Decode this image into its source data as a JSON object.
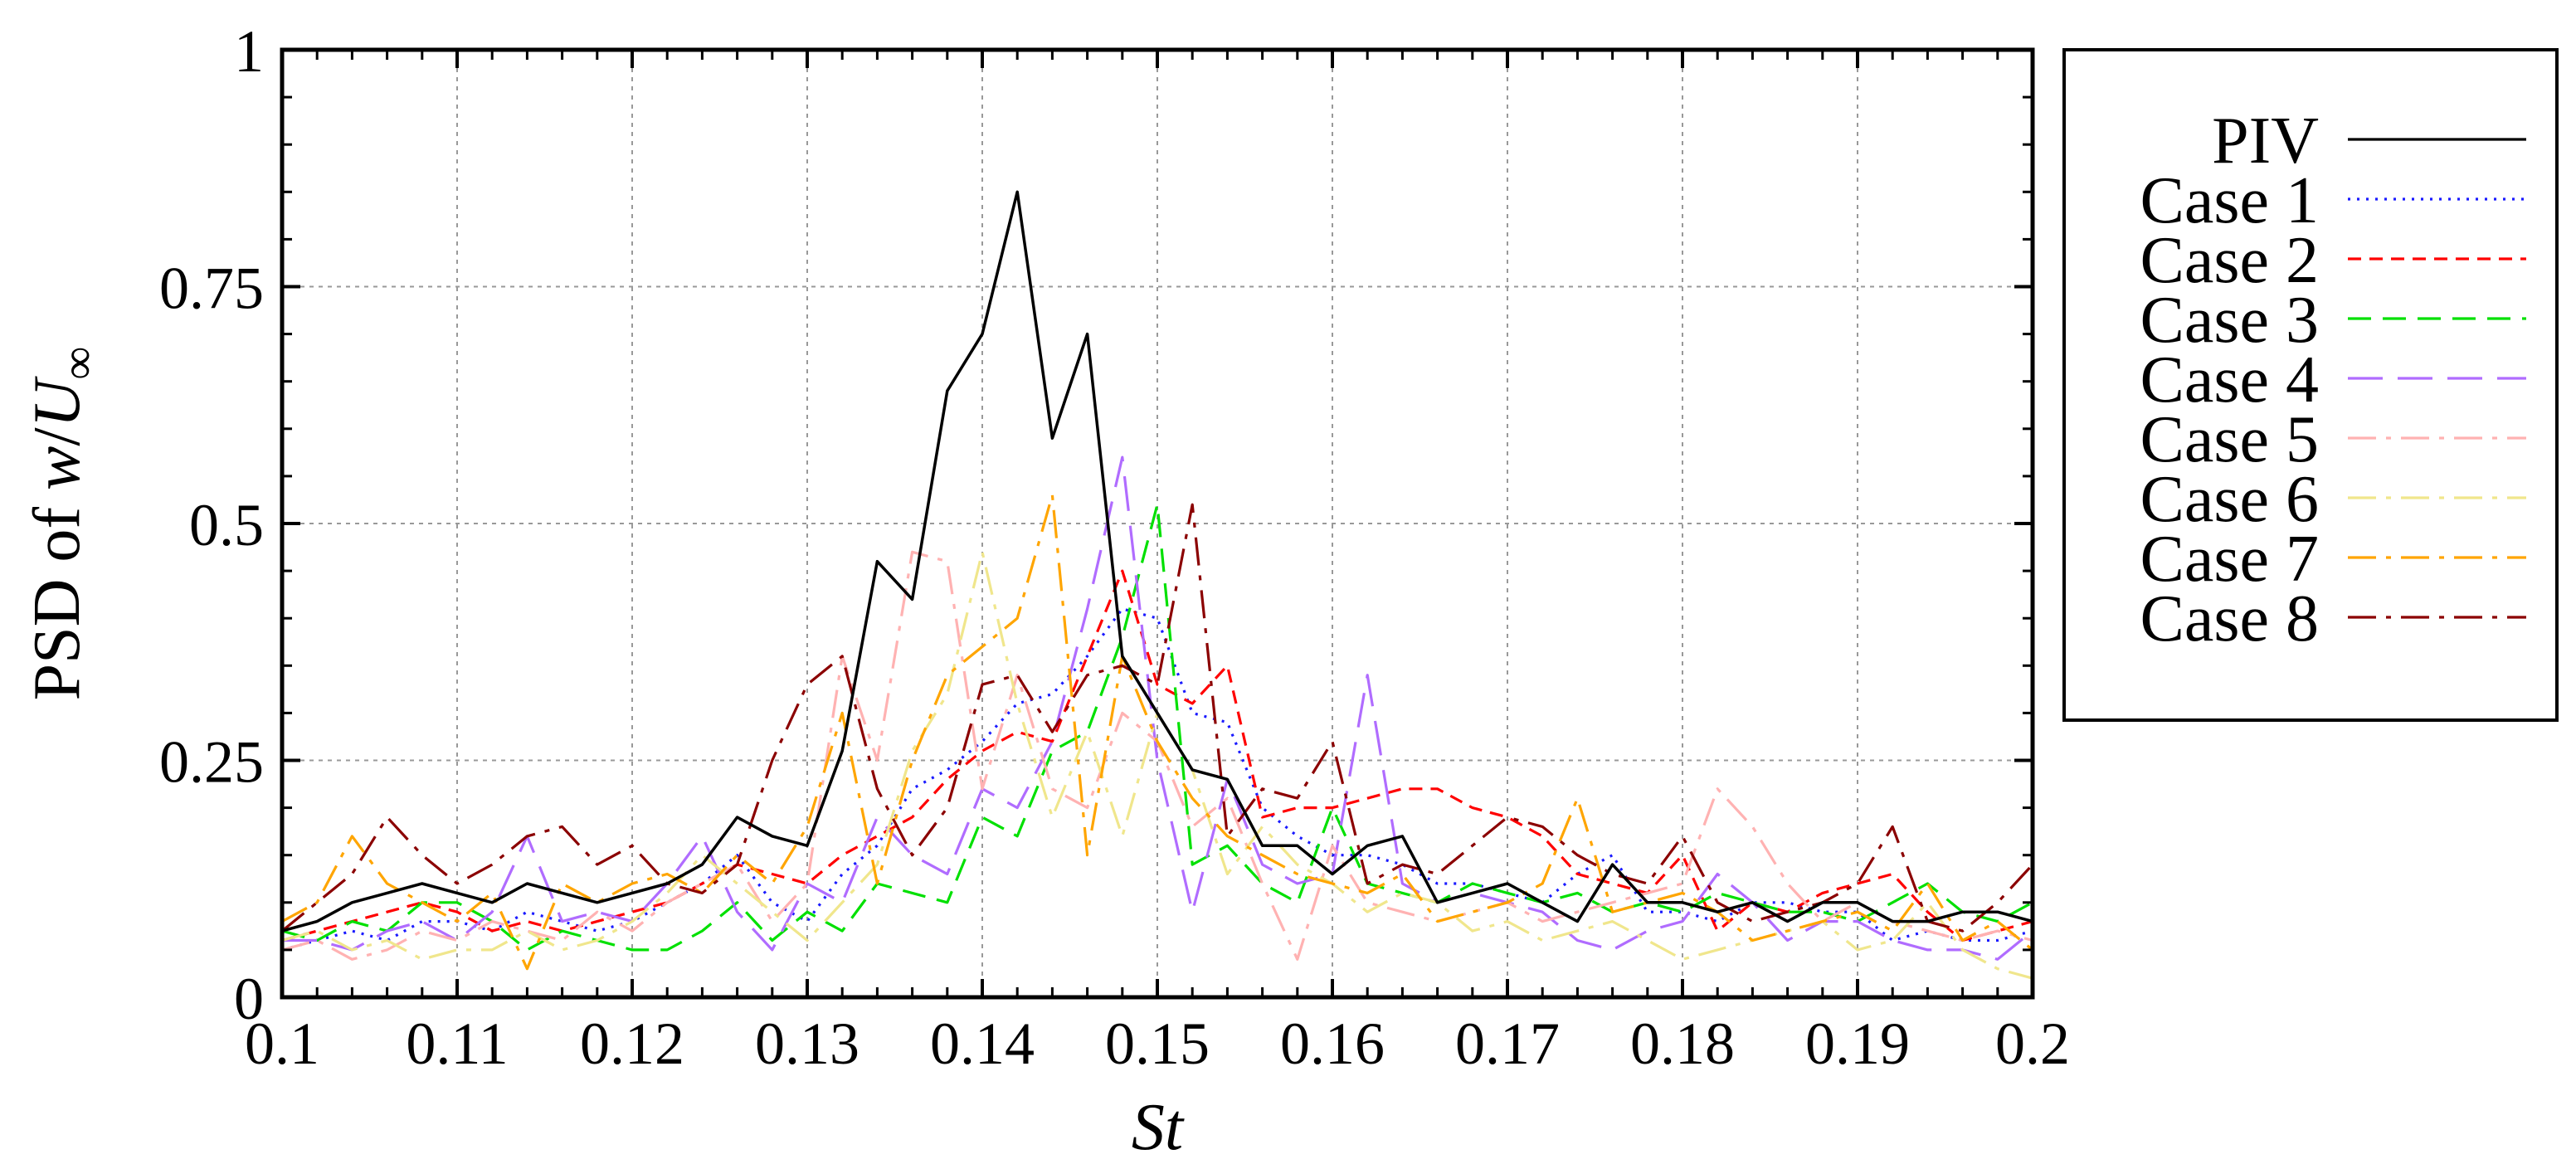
{
  "chart_data": {
    "type": "line",
    "title": "",
    "xlabel": "St",
    "ylabel": "PSD of w/U∞",
    "ylabel_parts": {
      "prefix": "PSD of ",
      "var": "w",
      "slash": "/",
      "var2": "U",
      "sub": "∞"
    },
    "xlim": [
      0.1,
      0.2
    ],
    "ylim": [
      0,
      1
    ],
    "grid": true,
    "legend_position": "outside-right",
    "xticks": [
      0.1,
      0.11,
      0.12,
      0.13,
      0.14,
      0.15,
      0.16,
      0.17,
      0.18,
      0.19,
      0.2
    ],
    "xtick_labels": [
      "0.1",
      "0.11",
      "0.12",
      "0.13",
      "0.14",
      "0.15",
      "0.16",
      "0.17",
      "0.18",
      "0.19",
      "0.2"
    ],
    "yticks": [
      0,
      0.25,
      0.5,
      0.75,
      1
    ],
    "ytick_labels": [
      "0",
      "0.25",
      "0.5",
      "0.75",
      "1"
    ],
    "series": [
      {
        "name": "PIV",
        "color": "#000000",
        "dash": "solid",
        "x": [
          0.1,
          0.102,
          0.104,
          0.106,
          0.108,
          0.11,
          0.112,
          0.114,
          0.116,
          0.118,
          0.12,
          0.122,
          0.124,
          0.126,
          0.128,
          0.13,
          0.132,
          0.134,
          0.136,
          0.138,
          0.14,
          0.142,
          0.144,
          0.146,
          0.148,
          0.15,
          0.152,
          0.154,
          0.156,
          0.158,
          0.16,
          0.162,
          0.164,
          0.166,
          0.168,
          0.17,
          0.172,
          0.174,
          0.176,
          0.178,
          0.18,
          0.182,
          0.184,
          0.186,
          0.188,
          0.19,
          0.192,
          0.194,
          0.196,
          0.198,
          0.2
        ],
        "y": [
          0.07,
          0.08,
          0.1,
          0.11,
          0.12,
          0.11,
          0.1,
          0.12,
          0.11,
          0.1,
          0.11,
          0.12,
          0.14,
          0.19,
          0.17,
          0.16,
          0.26,
          0.46,
          0.42,
          0.64,
          0.7,
          0.85,
          0.59,
          0.7,
          0.36,
          0.3,
          0.24,
          0.23,
          0.16,
          0.16,
          0.13,
          0.16,
          0.17,
          0.1,
          0.11,
          0.12,
          0.1,
          0.08,
          0.14,
          0.1,
          0.1,
          0.09,
          0.1,
          0.08,
          0.1,
          0.1,
          0.08,
          0.08,
          0.09,
          0.09,
          0.08
        ]
      },
      {
        "name": "Case 1",
        "color": "#1a1aff",
        "dash": "dotted",
        "x": [
          0.1,
          0.102,
          0.104,
          0.106,
          0.108,
          0.11,
          0.112,
          0.114,
          0.116,
          0.118,
          0.12,
          0.122,
          0.124,
          0.126,
          0.128,
          0.13,
          0.132,
          0.134,
          0.136,
          0.138,
          0.14,
          0.142,
          0.144,
          0.146,
          0.148,
          0.15,
          0.152,
          0.154,
          0.156,
          0.158,
          0.16,
          0.162,
          0.164,
          0.166,
          0.168,
          0.17,
          0.172,
          0.174,
          0.176,
          0.178,
          0.18,
          0.182,
          0.184,
          0.186,
          0.188,
          0.19,
          0.192,
          0.194,
          0.196,
          0.198,
          0.2
        ],
        "y": [
          0.05,
          0.06,
          0.07,
          0.06,
          0.08,
          0.08,
          0.07,
          0.09,
          0.08,
          0.07,
          0.08,
          0.1,
          0.12,
          0.15,
          0.1,
          0.08,
          0.13,
          0.16,
          0.22,
          0.24,
          0.27,
          0.31,
          0.32,
          0.36,
          0.41,
          0.4,
          0.3,
          0.29,
          0.2,
          0.17,
          0.15,
          0.15,
          0.14,
          0.12,
          0.12,
          0.11,
          0.1,
          0.13,
          0.15,
          0.09,
          0.09,
          0.08,
          0.1,
          0.1,
          0.09,
          0.09,
          0.06,
          0.07,
          0.06,
          0.06,
          0.07
        ]
      },
      {
        "name": "Case 2",
        "color": "#ff0000",
        "dash": "dashed",
        "x": [
          0.1,
          0.102,
          0.104,
          0.106,
          0.108,
          0.11,
          0.112,
          0.114,
          0.116,
          0.118,
          0.12,
          0.122,
          0.124,
          0.126,
          0.128,
          0.13,
          0.132,
          0.134,
          0.136,
          0.138,
          0.14,
          0.142,
          0.144,
          0.146,
          0.148,
          0.15,
          0.152,
          0.154,
          0.156,
          0.158,
          0.16,
          0.162,
          0.164,
          0.166,
          0.168,
          0.17,
          0.172,
          0.174,
          0.176,
          0.178,
          0.18,
          0.182,
          0.184,
          0.186,
          0.188,
          0.19,
          0.192,
          0.194,
          0.196,
          0.198,
          0.2
        ],
        "y": [
          0.06,
          0.07,
          0.08,
          0.09,
          0.1,
          0.09,
          0.07,
          0.08,
          0.07,
          0.08,
          0.09,
          0.1,
          0.12,
          0.14,
          0.13,
          0.12,
          0.15,
          0.17,
          0.19,
          0.23,
          0.26,
          0.28,
          0.27,
          0.36,
          0.45,
          0.33,
          0.31,
          0.35,
          0.19,
          0.2,
          0.2,
          0.21,
          0.22,
          0.22,
          0.2,
          0.19,
          0.17,
          0.13,
          0.12,
          0.11,
          0.15,
          0.07,
          0.1,
          0.09,
          0.11,
          0.12,
          0.13,
          0.09,
          0.06,
          0.07,
          0.08
        ]
      },
      {
        "name": "Case 3",
        "color": "#00e000",
        "dash": "longdash",
        "x": [
          0.1,
          0.102,
          0.104,
          0.106,
          0.108,
          0.11,
          0.112,
          0.114,
          0.116,
          0.118,
          0.12,
          0.122,
          0.124,
          0.126,
          0.128,
          0.13,
          0.132,
          0.134,
          0.136,
          0.138,
          0.14,
          0.142,
          0.144,
          0.146,
          0.148,
          0.15,
          0.152,
          0.154,
          0.156,
          0.158,
          0.16,
          0.162,
          0.164,
          0.166,
          0.168,
          0.17,
          0.172,
          0.174,
          0.176,
          0.178,
          0.18,
          0.182,
          0.184,
          0.186,
          0.188,
          0.19,
          0.192,
          0.194,
          0.196,
          0.198,
          0.2
        ],
        "y": [
          0.07,
          0.06,
          0.08,
          0.07,
          0.1,
          0.1,
          0.08,
          0.05,
          0.07,
          0.06,
          0.05,
          0.05,
          0.07,
          0.1,
          0.06,
          0.09,
          0.07,
          0.12,
          0.11,
          0.1,
          0.19,
          0.17,
          0.26,
          0.28,
          0.38,
          0.52,
          0.14,
          0.16,
          0.12,
          0.1,
          0.2,
          0.12,
          0.11,
          0.1,
          0.12,
          0.11,
          0.1,
          0.11,
          0.09,
          0.1,
          0.09,
          0.11,
          0.1,
          0.09,
          0.09,
          0.08,
          0.1,
          0.12,
          0.09,
          0.08,
          0.1
        ]
      },
      {
        "name": "Case 4",
        "color": "#b06cff",
        "dash": "longlongdash",
        "x": [
          0.1,
          0.102,
          0.104,
          0.106,
          0.108,
          0.11,
          0.112,
          0.114,
          0.116,
          0.118,
          0.12,
          0.122,
          0.124,
          0.126,
          0.128,
          0.13,
          0.132,
          0.134,
          0.136,
          0.138,
          0.14,
          0.142,
          0.144,
          0.146,
          0.148,
          0.15,
          0.152,
          0.154,
          0.156,
          0.158,
          0.16,
          0.162,
          0.164,
          0.166,
          0.168,
          0.17,
          0.172,
          0.174,
          0.176,
          0.178,
          0.18,
          0.182,
          0.184,
          0.186,
          0.188,
          0.19,
          0.192,
          0.194,
          0.196,
          0.198,
          0.2
        ],
        "y": [
          0.06,
          0.06,
          0.05,
          0.07,
          0.08,
          0.06,
          0.09,
          0.17,
          0.08,
          0.09,
          0.08,
          0.12,
          0.17,
          0.09,
          0.05,
          0.12,
          0.1,
          0.19,
          0.15,
          0.13,
          0.22,
          0.2,
          0.27,
          0.41,
          0.57,
          0.25,
          0.09,
          0.23,
          0.14,
          0.12,
          0.13,
          0.34,
          0.12,
          0.1,
          0.11,
          0.1,
          0.09,
          0.06,
          0.05,
          0.07,
          0.08,
          0.13,
          0.1,
          0.06,
          0.08,
          0.08,
          0.06,
          0.05,
          0.05,
          0.04,
          0.07
        ]
      },
      {
        "name": "Case 5",
        "color": "#ffb2b2",
        "dash": "dashdot",
        "x": [
          0.1,
          0.102,
          0.104,
          0.106,
          0.108,
          0.11,
          0.112,
          0.114,
          0.116,
          0.118,
          0.12,
          0.122,
          0.124,
          0.126,
          0.128,
          0.13,
          0.132,
          0.134,
          0.136,
          0.138,
          0.14,
          0.142,
          0.144,
          0.146,
          0.148,
          0.15,
          0.152,
          0.154,
          0.156,
          0.158,
          0.16,
          0.162,
          0.164,
          0.166,
          0.168,
          0.17,
          0.172,
          0.174,
          0.176,
          0.178,
          0.18,
          0.182,
          0.184,
          0.186,
          0.188,
          0.19,
          0.192,
          0.194,
          0.196,
          0.198,
          0.2
        ],
        "y": [
          0.05,
          0.06,
          0.04,
          0.05,
          0.07,
          0.06,
          0.08,
          0.07,
          0.06,
          0.09,
          0.07,
          0.1,
          0.12,
          0.14,
          0.08,
          0.12,
          0.36,
          0.25,
          0.47,
          0.46,
          0.22,
          0.34,
          0.22,
          0.2,
          0.3,
          0.27,
          0.18,
          0.21,
          0.12,
          0.04,
          0.16,
          0.1,
          0.09,
          0.08,
          0.09,
          0.1,
          0.08,
          0.09,
          0.1,
          0.11,
          0.12,
          0.22,
          0.18,
          0.12,
          0.08,
          0.1,
          0.08,
          0.07,
          0.06,
          0.07,
          0.06
        ]
      },
      {
        "name": "Case 6",
        "color": "#f0e68c",
        "dash": "dashdot",
        "x": [
          0.1,
          0.102,
          0.104,
          0.106,
          0.108,
          0.11,
          0.112,
          0.114,
          0.116,
          0.118,
          0.12,
          0.122,
          0.124,
          0.126,
          0.128,
          0.13,
          0.132,
          0.134,
          0.136,
          0.138,
          0.14,
          0.142,
          0.144,
          0.146,
          0.148,
          0.15,
          0.152,
          0.154,
          0.156,
          0.158,
          0.16,
          0.162,
          0.164,
          0.166,
          0.168,
          0.17,
          0.172,
          0.174,
          0.176,
          0.178,
          0.18,
          0.182,
          0.184,
          0.186,
          0.188,
          0.19,
          0.192,
          0.194,
          0.196,
          0.198,
          0.2
        ],
        "y": [
          0.06,
          0.07,
          0.05,
          0.06,
          0.04,
          0.05,
          0.05,
          0.07,
          0.05,
          0.06,
          0.08,
          0.11,
          0.15,
          0.12,
          0.09,
          0.06,
          0.1,
          0.14,
          0.26,
          0.32,
          0.47,
          0.31,
          0.19,
          0.28,
          0.17,
          0.3,
          0.24,
          0.13,
          0.18,
          0.14,
          0.12,
          0.09,
          0.11,
          0.1,
          0.07,
          0.08,
          0.06,
          0.07,
          0.08,
          0.06,
          0.04,
          0.05,
          0.06,
          0.07,
          0.08,
          0.05,
          0.06,
          0.1,
          0.05,
          0.03,
          0.02
        ]
      },
      {
        "name": "Case 7",
        "color": "#ffa500",
        "dash": "dashdot",
        "x": [
          0.1,
          0.102,
          0.104,
          0.106,
          0.108,
          0.11,
          0.112,
          0.114,
          0.116,
          0.118,
          0.12,
          0.122,
          0.124,
          0.126,
          0.128,
          0.13,
          0.132,
          0.134,
          0.136,
          0.138,
          0.14,
          0.142,
          0.144,
          0.146,
          0.148,
          0.15,
          0.152,
          0.154,
          0.156,
          0.158,
          0.16,
          0.162,
          0.164,
          0.166,
          0.168,
          0.17,
          0.172,
          0.174,
          0.176,
          0.178,
          0.18,
          0.182,
          0.184,
          0.186,
          0.188,
          0.19,
          0.192,
          0.194,
          0.196,
          0.198,
          0.2
        ],
        "y": [
          0.08,
          0.1,
          0.17,
          0.12,
          0.1,
          0.08,
          0.11,
          0.03,
          0.12,
          0.1,
          0.12,
          0.13,
          0.11,
          0.15,
          0.12,
          0.18,
          0.3,
          0.12,
          0.25,
          0.34,
          0.37,
          0.4,
          0.53,
          0.15,
          0.36,
          0.27,
          0.21,
          0.17,
          0.15,
          0.13,
          0.12,
          0.11,
          0.13,
          0.08,
          0.09,
          0.1,
          0.12,
          0.21,
          0.09,
          0.1,
          0.11,
          0.09,
          0.06,
          0.07,
          0.08,
          0.09,
          0.07,
          0.12,
          0.06,
          0.08,
          0.05
        ]
      },
      {
        "name": "Case 8",
        "color": "#8b0000",
        "dash": "dashdot",
        "x": [
          0.1,
          0.102,
          0.104,
          0.106,
          0.108,
          0.11,
          0.112,
          0.114,
          0.116,
          0.118,
          0.12,
          0.122,
          0.124,
          0.126,
          0.128,
          0.13,
          0.132,
          0.134,
          0.136,
          0.138,
          0.14,
          0.142,
          0.144,
          0.146,
          0.148,
          0.15,
          0.152,
          0.154,
          0.156,
          0.158,
          0.16,
          0.162,
          0.164,
          0.166,
          0.168,
          0.17,
          0.172,
          0.174,
          0.176,
          0.178,
          0.18,
          0.182,
          0.184,
          0.186,
          0.188,
          0.19,
          0.192,
          0.194,
          0.196,
          0.198,
          0.2
        ],
        "y": [
          0.07,
          0.1,
          0.13,
          0.19,
          0.15,
          0.12,
          0.14,
          0.17,
          0.18,
          0.14,
          0.16,
          0.12,
          0.11,
          0.14,
          0.25,
          0.33,
          0.36,
          0.22,
          0.15,
          0.2,
          0.33,
          0.34,
          0.28,
          0.34,
          0.35,
          0.33,
          0.52,
          0.17,
          0.22,
          0.21,
          0.27,
          0.12,
          0.14,
          0.13,
          0.16,
          0.19,
          0.18,
          0.15,
          0.13,
          0.12,
          0.17,
          0.1,
          0.08,
          0.09,
          0.1,
          0.12,
          0.18,
          0.08,
          0.07,
          0.1,
          0.14
        ]
      }
    ]
  }
}
